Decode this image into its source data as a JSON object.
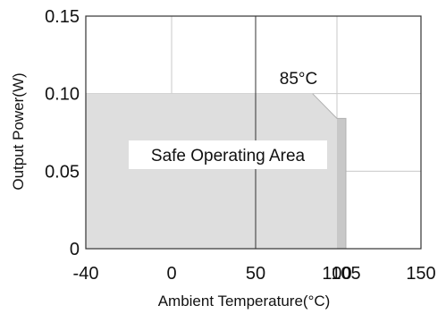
{
  "chart_data": {
    "type": "area",
    "title": "",
    "xlabel": "Ambient Temperature(°C)",
    "ylabel": "Output Power(W)",
    "x_ticks": [
      {
        "value": -40,
        "label": "-40"
      },
      {
        "value": 0,
        "label": "0"
      },
      {
        "value": 50,
        "label": "50"
      },
      {
        "value": 100,
        "label": "100"
      },
      {
        "value": 105,
        "label": "105"
      },
      {
        "value": 150,
        "label": "150"
      }
    ],
    "y_ticks": [
      {
        "value": 0,
        "label": "0"
      },
      {
        "value": 0.05,
        "label": "0.05"
      },
      {
        "value": 0.1,
        "label": "0.10"
      },
      {
        "value": 0.15,
        "label": "0.15"
      }
    ],
    "xlim": [
      -40,
      150
    ],
    "ylim": [
      0,
      0.15
    ],
    "grid": true,
    "series": [
      {
        "x": [
          -40,
          85,
          100,
          100
        ],
        "y": [
          0.1,
          0.1,
          0.084,
          0
        ]
      }
    ],
    "extension": {
      "x": [
        100,
        105,
        105,
        100
      ],
      "y": [
        0.084,
        0.084,
        0,
        0
      ]
    },
    "annotations": [
      {
        "text": "85°C",
        "x": 100,
        "y": 0.11
      },
      {
        "text": "Safe Operating Area",
        "x": 50,
        "y": 0.068
      }
    ],
    "colors": {
      "area_fill": "#dedede",
      "extension_fill": "#c8c8c8",
      "area_edge": "#b0b0b0",
      "grid": "#c8c8c8",
      "frame": "#333333",
      "label_box": "#ffffff",
      "text": "#111111"
    }
  }
}
